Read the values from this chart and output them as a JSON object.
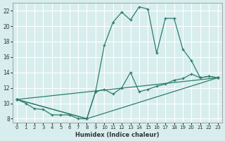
{
  "xlabel": "Humidex (Indice chaleur)",
  "ylabel": "",
  "bg_color": "#d8eeee",
  "grid_color": "#ffffff",
  "line_color": "#2e7d6e",
  "xlim": [
    -0.5,
    23.5
  ],
  "ylim": [
    7.5,
    23
  ],
  "xticks": [
    0,
    1,
    2,
    3,
    4,
    5,
    6,
    7,
    8,
    9,
    10,
    11,
    12,
    13,
    14,
    15,
    16,
    17,
    18,
    19,
    20,
    21,
    22,
    23
  ],
  "yticks": [
    8,
    10,
    12,
    14,
    16,
    18,
    20,
    22
  ],
  "series1_x": [
    0,
    1,
    2,
    3,
    4,
    5,
    6,
    7,
    8,
    9,
    10,
    11,
    12,
    13,
    14,
    15,
    16,
    17,
    18,
    19,
    20,
    21,
    22,
    23
  ],
  "series1_y": [
    10.5,
    10.0,
    9.3,
    9.2,
    8.5,
    8.5,
    8.5,
    8.0,
    8.0,
    11.5,
    17.5,
    20.5,
    21.8,
    20.8,
    22.5,
    22.2,
    16.5,
    21.0,
    21.0,
    17.0,
    15.5,
    13.3,
    13.5,
    13.3
  ],
  "series2_x": [
    0,
    8,
    9,
    10,
    11,
    12,
    13,
    14,
    15,
    16,
    17,
    18,
    19,
    20,
    21,
    22,
    23
  ],
  "series2_y": [
    10.5,
    8.0,
    11.5,
    11.8,
    11.2,
    12.0,
    14.0,
    11.5,
    11.8,
    12.2,
    12.5,
    13.0,
    13.2,
    13.8,
    13.3,
    13.5,
    13.3
  ],
  "series3_x": [
    0,
    23
  ],
  "series3_y": [
    10.5,
    13.3
  ],
  "series4_x": [
    0,
    8,
    23
  ],
  "series4_y": [
    10.5,
    8.0,
    13.3
  ]
}
